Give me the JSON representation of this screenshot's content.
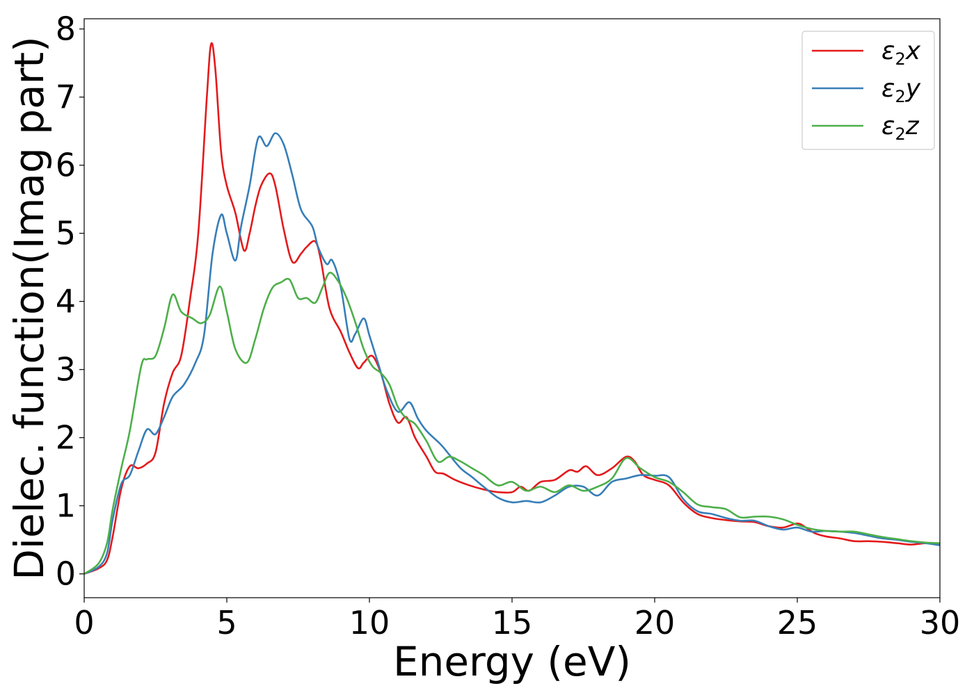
{
  "chart_data": {
    "type": "line",
    "xlabel": "Energy (eV)",
    "ylabel": "Dielec. function(Imag part)",
    "xlim": [
      0,
      30
    ],
    "ylim": [
      -0.35,
      8.15
    ],
    "xticks": [
      0,
      5,
      10,
      15,
      20,
      25,
      30
    ],
    "yticks": [
      0,
      1,
      2,
      3,
      4,
      5,
      6,
      7,
      8
    ],
    "grid": false,
    "legend_position": "top-right",
    "series": [
      {
        "name": "ε₂x",
        "legend_base": "ε",
        "legend_sub": "2",
        "legend_suffix": "x",
        "color": "#e41a1c",
        "x": [
          0,
          0.5,
          0.8,
          1.0,
          1.3,
          1.6,
          1.9,
          2.2,
          2.5,
          2.8,
          3.1,
          3.4,
          3.7,
          4.0,
          4.3,
          4.45,
          4.6,
          4.8,
          5.0,
          5.3,
          5.6,
          5.8,
          6.0,
          6.2,
          6.5,
          6.7,
          7.0,
          7.3,
          7.6,
          7.8,
          8.1,
          8.3,
          8.6,
          9.0,
          9.3,
          9.6,
          9.8,
          10.1,
          10.4,
          10.7,
          11.0,
          11.3,
          11.6,
          12.0,
          12.3,
          12.6,
          13.0,
          13.5,
          14.0,
          14.5,
          15.0,
          15.3,
          15.6,
          16.0,
          16.5,
          17.0,
          17.3,
          17.6,
          18.0,
          18.5,
          19.0,
          19.3,
          19.6,
          20.0,
          20.5,
          21.0,
          21.5,
          22.0,
          22.5,
          23.0,
          23.5,
          24.0,
          24.5,
          25.0,
          25.3,
          25.6,
          26.0,
          26.5,
          27.0,
          27.5,
          28.0,
          28.5,
          29.0,
          29.5,
          30.0
        ],
        "values": [
          0.0,
          0.08,
          0.2,
          0.55,
          1.25,
          1.58,
          1.55,
          1.62,
          1.78,
          2.5,
          2.95,
          3.2,
          4.0,
          5.0,
          7.0,
          7.78,
          7.4,
          6.2,
          5.7,
          5.3,
          4.75,
          5.0,
          5.4,
          5.7,
          5.88,
          5.7,
          5.05,
          4.58,
          4.7,
          4.8,
          4.88,
          4.6,
          3.9,
          3.55,
          3.25,
          3.02,
          3.1,
          3.2,
          2.95,
          2.5,
          2.22,
          2.3,
          2.0,
          1.72,
          1.5,
          1.47,
          1.38,
          1.3,
          1.24,
          1.2,
          1.2,
          1.28,
          1.22,
          1.35,
          1.38,
          1.52,
          1.5,
          1.58,
          1.45,
          1.55,
          1.72,
          1.65,
          1.45,
          1.38,
          1.3,
          1.05,
          0.88,
          0.82,
          0.79,
          0.77,
          0.76,
          0.7,
          0.68,
          0.74,
          0.68,
          0.6,
          0.55,
          0.52,
          0.48,
          0.48,
          0.47,
          0.45,
          0.43,
          0.45,
          0.44
        ]
      },
      {
        "name": "ε₂y",
        "legend_base": "ε",
        "legend_sub": "2",
        "legend_suffix": "y",
        "color": "#377eb8",
        "x": [
          0,
          0.5,
          0.8,
          1.0,
          1.3,
          1.6,
          1.9,
          2.2,
          2.5,
          2.8,
          3.1,
          3.5,
          3.9,
          4.2,
          4.5,
          4.8,
          5.0,
          5.3,
          5.5,
          5.8,
          6.1,
          6.4,
          6.7,
          7.0,
          7.3,
          7.6,
          8.0,
          8.2,
          8.5,
          8.7,
          9.0,
          9.3,
          9.5,
          9.8,
          10.0,
          10.3,
          10.6,
          11.0,
          11.4,
          11.7,
          12.0,
          12.5,
          12.8,
          13.2,
          13.6,
          14.0,
          14.5,
          15.0,
          15.5,
          16.0,
          16.5,
          17.0,
          17.5,
          18.0,
          18.5,
          19.0,
          19.5,
          20.0,
          20.5,
          21.0,
          21.5,
          22.0,
          22.5,
          23.0,
          23.5,
          24.0,
          24.5,
          25.0,
          25.5,
          26.0,
          26.5,
          27.0,
          27.5,
          28.0,
          28.5,
          29.0,
          29.5,
          30.0
        ],
        "values": [
          0.0,
          0.1,
          0.3,
          0.8,
          1.32,
          1.45,
          1.8,
          2.12,
          2.05,
          2.3,
          2.6,
          2.78,
          3.1,
          3.5,
          4.7,
          5.27,
          5.0,
          4.6,
          5.1,
          5.7,
          6.4,
          6.28,
          6.47,
          6.3,
          5.85,
          5.35,
          5.1,
          4.8,
          4.55,
          4.6,
          4.2,
          3.45,
          3.52,
          3.75,
          3.5,
          3.1,
          2.7,
          2.38,
          2.52,
          2.28,
          2.1,
          1.9,
          1.75,
          1.55,
          1.42,
          1.28,
          1.12,
          1.05,
          1.07,
          1.05,
          1.15,
          1.28,
          1.28,
          1.15,
          1.35,
          1.4,
          1.45,
          1.44,
          1.42,
          1.1,
          0.92,
          0.88,
          0.82,
          0.78,
          0.78,
          0.7,
          0.65,
          0.68,
          0.62,
          0.63,
          0.62,
          0.6,
          0.56,
          0.52,
          0.5,
          0.47,
          0.45,
          0.42
        ]
      },
      {
        "name": "ε₂z",
        "legend_base": "ε",
        "legend_sub": "2",
        "legend_suffix": "z",
        "color": "#4daf4a",
        "x": [
          0,
          0.5,
          0.8,
          1.0,
          1.3,
          1.6,
          2.0,
          2.2,
          2.5,
          2.8,
          3.1,
          3.4,
          3.8,
          4.1,
          4.4,
          4.75,
          5.0,
          5.3,
          5.7,
          6.0,
          6.3,
          6.6,
          6.9,
          7.2,
          7.5,
          7.8,
          8.1,
          8.35,
          8.6,
          8.9,
          9.2,
          9.5,
          9.8,
          10.1,
          10.4,
          10.7,
          11.0,
          11.3,
          11.6,
          12.0,
          12.4,
          12.8,
          13.2,
          13.6,
          14.0,
          14.5,
          15.0,
          15.5,
          16.0,
          16.5,
          17.0,
          17.5,
          18.0,
          18.5,
          19.0,
          19.5,
          20.0,
          20.5,
          21.0,
          21.5,
          22.0,
          22.5,
          23.0,
          23.5,
          24.0,
          24.5,
          25.0,
          25.5,
          26.0,
          26.5,
          27.0,
          27.5,
          28.0,
          28.5,
          29.0,
          29.5,
          30.0
        ],
        "values": [
          0.0,
          0.15,
          0.45,
          0.95,
          1.55,
          2.1,
          3.05,
          3.15,
          3.2,
          3.6,
          4.1,
          3.85,
          3.75,
          3.68,
          3.8,
          4.22,
          3.85,
          3.3,
          3.1,
          3.45,
          3.9,
          4.2,
          4.28,
          4.32,
          4.05,
          4.05,
          3.98,
          4.2,
          4.42,
          4.3,
          4.05,
          3.7,
          3.3,
          3.05,
          2.95,
          2.78,
          2.45,
          2.28,
          2.2,
          1.95,
          1.65,
          1.72,
          1.65,
          1.55,
          1.45,
          1.3,
          1.35,
          1.22,
          1.28,
          1.2,
          1.3,
          1.22,
          1.28,
          1.4,
          1.7,
          1.55,
          1.42,
          1.35,
          1.2,
          1.02,
          0.98,
          0.95,
          0.83,
          0.84,
          0.84,
          0.8,
          0.72,
          0.66,
          0.63,
          0.62,
          0.62,
          0.58,
          0.54,
          0.51,
          0.48,
          0.46,
          0.45
        ]
      }
    ]
  }
}
